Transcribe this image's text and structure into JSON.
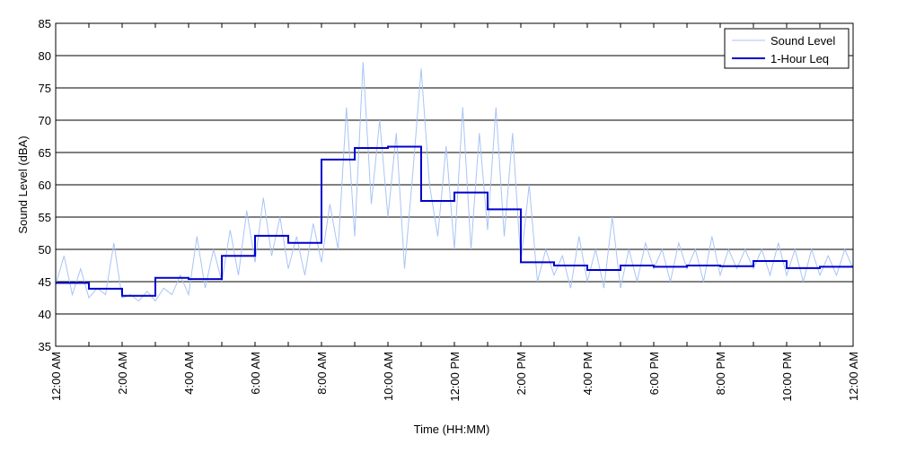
{
  "chart_data": {
    "type": "line",
    "title": "",
    "xlabel": "Time (HH:MM)",
    "ylabel": "Sound Level (dBA)",
    "xlim": [
      0,
      24
    ],
    "ylim": [
      35,
      85
    ],
    "y_ticks": [
      35,
      40,
      45,
      50,
      55,
      60,
      65,
      70,
      75,
      80,
      85
    ],
    "x_ticks": [
      {
        "hour": 0,
        "label": "12:00 AM"
      },
      {
        "hour": 2,
        "label": "2:00 AM"
      },
      {
        "hour": 4,
        "label": "4:00 AM"
      },
      {
        "hour": 6,
        "label": "6:00 AM"
      },
      {
        "hour": 8,
        "label": "8:00 AM"
      },
      {
        "hour": 10,
        "label": "10:00 AM"
      },
      {
        "hour": 12,
        "label": "12:00 PM"
      },
      {
        "hour": 14,
        "label": "2:00 PM"
      },
      {
        "hour": 16,
        "label": "4:00 PM"
      },
      {
        "hour": 18,
        "label": "6:00 PM"
      },
      {
        "hour": 20,
        "label": "8:00 PM"
      },
      {
        "hour": 22,
        "label": "10:00 PM"
      },
      {
        "hour": 24,
        "label": "12:00 AM"
      }
    ],
    "grid": "horizontal",
    "legend": "top-right",
    "series": [
      {
        "name": "Sound Level",
        "color": "#a9c4f5",
        "style": "thin-line",
        "x": [
          0,
          0.25,
          0.5,
          0.75,
          1,
          1.25,
          1.5,
          1.75,
          2,
          2.25,
          2.5,
          2.75,
          3,
          3.25,
          3.5,
          3.75,
          4,
          4.25,
          4.5,
          4.75,
          5,
          5.25,
          5.5,
          5.75,
          6,
          6.25,
          6.5,
          6.75,
          7,
          7.25,
          7.5,
          7.75,
          8,
          8.25,
          8.5,
          8.75,
          9,
          9.25,
          9.5,
          9.75,
          10,
          10.25,
          10.5,
          10.75,
          11,
          11.25,
          11.5,
          11.75,
          12,
          12.25,
          12.5,
          12.75,
          13,
          13.25,
          13.5,
          13.75,
          14,
          14.25,
          14.5,
          14.75,
          15,
          15.25,
          15.5,
          15.75,
          16,
          16.25,
          16.5,
          16.75,
          17,
          17.25,
          17.5,
          17.75,
          18,
          18.25,
          18.5,
          18.75,
          19,
          19.25,
          19.5,
          19.75,
          20,
          20.25,
          20.5,
          20.75,
          21,
          21.25,
          21.5,
          21.75,
          22,
          22.25,
          22.5,
          22.75,
          23,
          23.25,
          23.5,
          23.75,
          24
        ],
        "y": [
          44.5,
          49,
          43,
          47,
          42.5,
          44,
          43,
          51,
          42.5,
          43,
          42,
          43.5,
          42,
          44,
          43,
          46,
          43,
          52,
          44,
          50,
          45,
          53,
          46,
          56,
          48,
          58,
          49,
          55,
          47,
          52,
          46,
          54,
          48,
          57,
          50,
          72,
          52,
          79,
          57,
          70,
          55,
          68,
          47,
          62,
          78,
          60,
          52,
          66,
          50,
          72,
          50,
          68,
          53,
          72,
          52,
          68,
          48,
          60,
          45,
          50,
          46,
          49,
          44,
          52,
          45,
          50,
          44,
          55,
          44,
          50,
          45,
          51,
          47,
          50,
          45,
          51,
          47,
          50,
          45,
          52,
          46,
          50,
          47,
          50,
          47,
          50,
          46,
          51,
          46,
          50,
          45,
          50,
          46,
          49,
          46,
          50,
          47
        ]
      },
      {
        "name": "1-Hour Leq",
        "color": "#0000cc",
        "style": "step",
        "x": [
          0,
          1,
          2,
          3,
          4,
          5,
          6,
          7,
          8,
          9,
          10,
          11,
          12,
          13,
          14,
          15,
          16,
          17,
          18,
          19,
          20,
          21,
          22,
          23
        ],
        "y": [
          44.8,
          43.9,
          42.8,
          45.6,
          45.4,
          49.0,
          52.1,
          51.0,
          63.9,
          65.7,
          65.9,
          57.5,
          58.8,
          56.2,
          48.0,
          47.5,
          46.8,
          47.5,
          47.3,
          47.5,
          47.4,
          48.2,
          47.1,
          47.3
        ]
      }
    ]
  }
}
